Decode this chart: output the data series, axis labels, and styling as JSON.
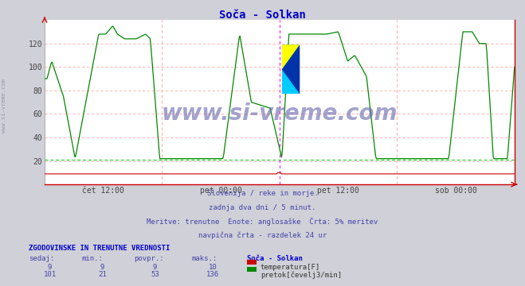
{
  "title": "Soča - Solkan",
  "title_color": "#0000cc",
  "bg_color": "#d0d0d8",
  "plot_bg_color": "#ffffff",
  "x_labels": [
    "čet 12:00",
    "pet 00:00",
    "pet 12:00",
    "sob 00:00"
  ],
  "ylim": [
    0,
    140
  ],
  "yticks": [
    20,
    40,
    60,
    80,
    100,
    120
  ],
  "grid_color": "#ffaaaa",
  "vline_magenta": "#ff00ff",
  "vline_pink": "#ffaaaa",
  "hline_color": "#00cc00",
  "hline_y": 21,
  "temp_color": "#cc0000",
  "flow_color": "#008800",
  "axis_arrow_color": "#cc0000",
  "watermark": "www.si-vreme.com",
  "watermark_color": "#6666aa",
  "left_text": "www.si-vreme.com",
  "subtitle_lines": [
    "Slovenija / reke in morje.",
    "zadnja dva dni / 5 minut.",
    "Meritve: trenutne  Enote: anglosaške  Črta: 5% meritev",
    "navpična črta - razdelek 24 ur"
  ],
  "subtitle_color": "#4444aa",
  "table_header": "ZGODOVINSKE IN TRENUTNE VREDNOSTI",
  "table_header_color": "#0000cc",
  "col_headers": [
    "sedaj:",
    "min.:",
    "povpr.:",
    "maks.:"
  ],
  "col_header_color": "#4444aa",
  "row1": [
    9,
    9,
    9,
    10
  ],
  "row2": [
    101,
    21,
    53,
    136
  ],
  "row_color": "#4444aa",
  "station_label": "Soča - Solkan",
  "station_label_color": "#0000cc",
  "label1": "temperatura[F]",
  "label2": "pretok[čevelj3/min]",
  "label_color": "#333333",
  "n_points": 576
}
